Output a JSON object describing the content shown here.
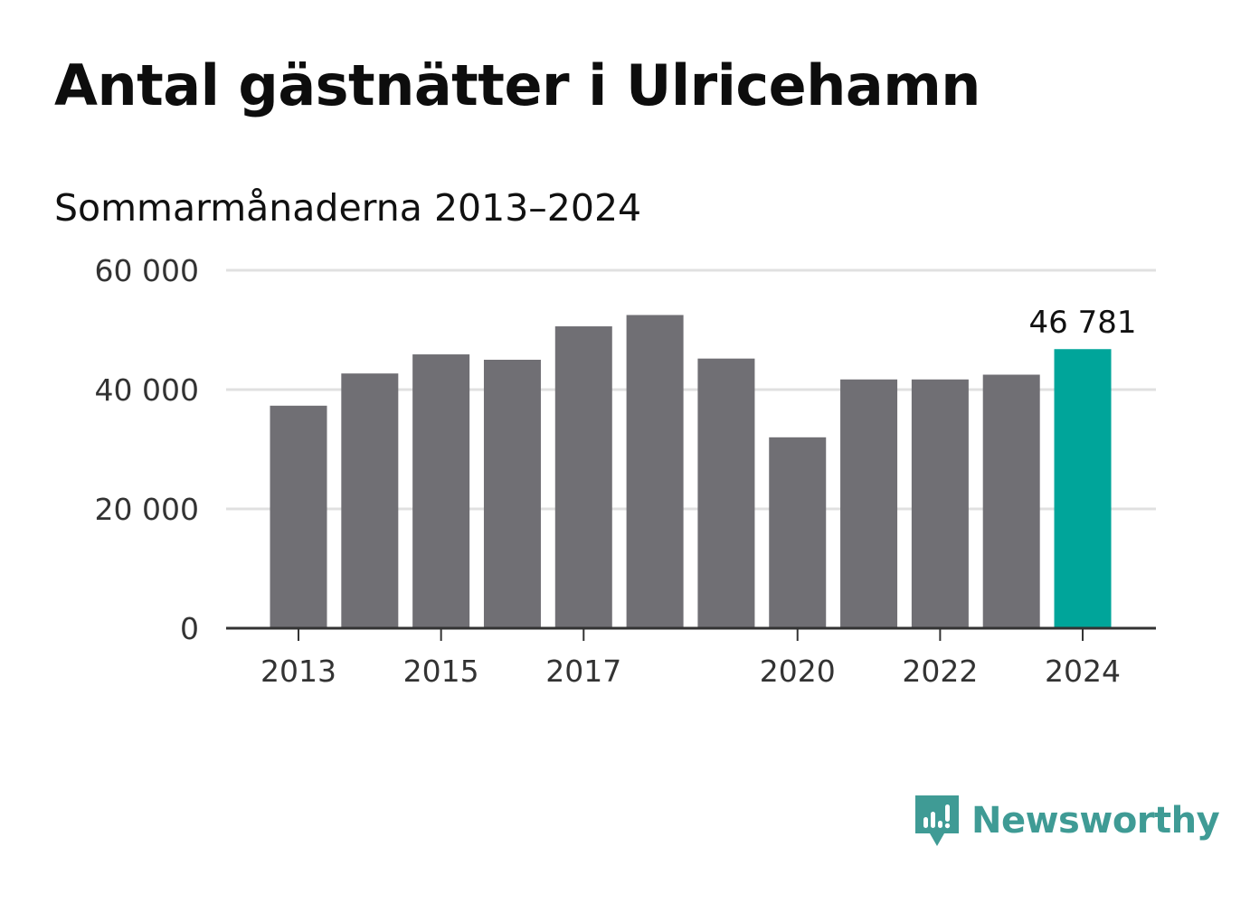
{
  "title": "Antal gästnätter i Ulricehamn",
  "subtitle": "Sommarmånaderna 2013–2024",
  "colors": {
    "bar": "#706f74",
    "highlight": "#00a59a",
    "grid": "#e0e0e0",
    "axis": "#333333",
    "brand": "#3f9b95"
  },
  "brand": {
    "name": "Newsworthy",
    "icon": "newsworthy-logo-icon"
  },
  "chart_data": {
    "type": "bar",
    "categories": [
      2013,
      2014,
      2015,
      2016,
      2017,
      2018,
      2019,
      2020,
      2021,
      2022,
      2023,
      2024
    ],
    "x_tick_labels": [
      "2013",
      "2015",
      "2017",
      "2020",
      "2022",
      "2024"
    ],
    "values": [
      37300,
      42700,
      45900,
      45000,
      50600,
      52500,
      45200,
      32000,
      41700,
      41700,
      42500,
      46781
    ],
    "highlight_index": 11,
    "value_label": "46 781",
    "y_ticks": [
      0,
      20000,
      40000,
      60000
    ],
    "y_tick_labels": [
      "0",
      "20 000",
      "40 000",
      "60 000"
    ],
    "ylim": [
      0,
      60000
    ],
    "grid": true,
    "legend": "none"
  }
}
